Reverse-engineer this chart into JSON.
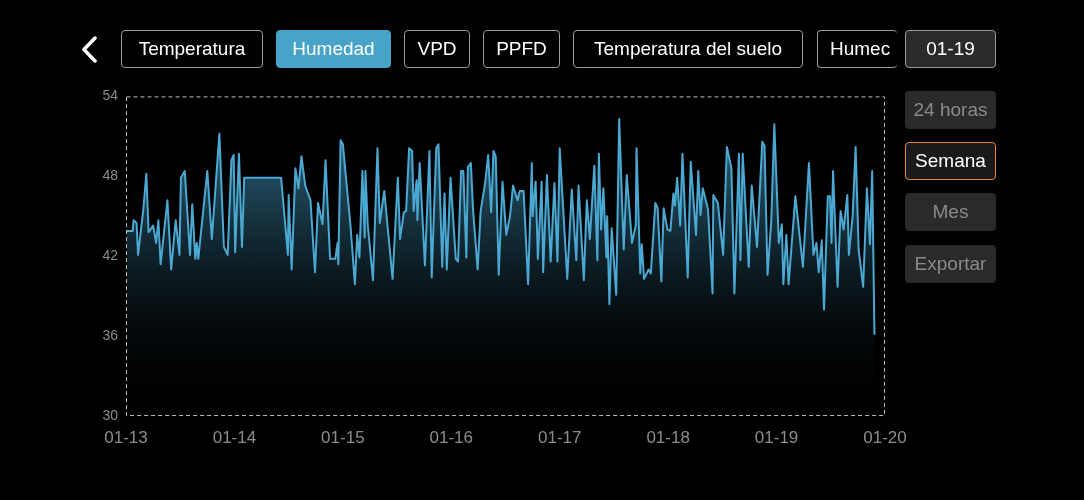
{
  "chart_data": {
    "type": "area",
    "annotations": [
      "Temperatura",
      "Humedad",
      "VPD",
      "PPFD",
      "Temperatura del suelo",
      "Humec",
      "01-19",
      "24 horas",
      "Semana",
      "Mes",
      "Exportar"
    ],
    "xlim": [
      "--01-13",
      "--01-20"
    ],
    "xticks": [
      {
        "value": "--01-13",
        "label": "01-13"
      },
      {
        "value": "--01-14",
        "label": "01-14"
      },
      {
        "value": "--01-15",
        "label": "01-15"
      },
      {
        "value": "--01-16",
        "label": "01-16"
      },
      {
        "value": "--01-17",
        "label": "01-17"
      },
      {
        "value": "--01-18",
        "label": "01-18"
      },
      {
        "value": "--01-19",
        "label": "01-19"
      },
      {
        "value": "--01-20",
        "label": "01-20"
      }
    ],
    "ylim": [
      30,
      54
    ],
    "yticks": [
      30,
      36,
      42,
      48,
      54
    ],
    "series": [
      {
        "color": "#4aa8d2",
        "x": [
          "--01-13T00:10",
          "--01-13T01:30",
          "--01-13T01:40",
          "--01-13T02:20",
          "--01-13T02:40",
          "--01-13T03:50",
          "--01-13T04:30",
          "--01-13T05:00",
          "--01-13T06:00",
          "--01-13T06:40",
          "--01-13T07:10",
          "--01-13T07:40",
          "--01-13T09:10",
          "--01-13T10:00",
          "--01-13T11:00",
          "--01-13T11:50",
          "--01-13T12:10",
          "--01-13T13:00",
          "--01-13T14:10",
          "--01-13T14:40",
          "--01-13T15:20",
          "--01-13T15:40",
          "--01-13T16:00",
          "--01-13T18:00",
          "--01-13T19:00",
          "--01-13T20:40",
          "--01-13T21:40",
          "--01-13T22:30",
          "--01-13T23:20",
          "--01-13T23:50",
          "--01-14T00:10",
          "--01-14T01:00",
          "--01-14T01:40",
          "--01-14T02:10",
          "--01-14T10:20",
          "--01-14T11:50",
          "--01-14T12:00",
          "--01-14T12:40",
          "--01-14T13:30",
          "--01-14T14:10",
          "--01-14T14:50",
          "--01-14T15:40",
          "--01-14T16:50",
          "--01-14T17:50",
          "--01-14T18:30",
          "--01-14T19:30",
          "--01-14T20:10",
          "--01-14T21:10",
          "--01-14T22:20",
          "--01-14T22:50",
          "--01-14T23:00",
          "--01-14T23:30",
          "--01-15T00:00",
          "--01-15T01:40",
          "--01-15T02:40",
          "--01-15T03:10",
          "--01-15T03:40",
          "--01-15T04:20",
          "--01-15T04:50",
          "--01-15T05:00",
          "--01-15T05:30",
          "--01-15T06:40",
          "--01-15T07:40",
          "--01-15T08:10",
          "--01-15T09:10",
          "--01-15T11:00",
          "--01-15T12:10",
          "--01-15T12:40",
          "--01-15T13:30",
          "--01-15T14:00",
          "--01-15T14:40",
          "--01-15T15:20",
          "--01-15T15:40",
          "--01-15T16:20",
          "--01-15T16:30",
          "--01-15T17:00",
          "--01-15T18:10",
          "--01-15T19:10",
          "--01-15T19:40",
          "--01-15T20:40",
          "--01-15T21:10",
          "--01-15T22:00",
          "--01-15T22:30",
          "--01-15T23:00",
          "--01-15T23:50",
          "--01-16T01:00",
          "--01-16T01:30",
          "--01-16T02:10",
          "--01-16T02:40",
          "--01-16T03:20",
          "--01-16T03:40",
          "--01-16T04:20",
          "--01-16T04:50",
          "--01-16T05:50",
          "--01-16T06:30",
          "--01-16T07:30",
          "--01-16T08:10",
          "--01-16T08:50",
          "--01-16T09:20",
          "--01-16T09:50",
          "--01-16T10:30",
          "--01-16T11:20",
          "--01-16T12:10",
          "--01-16T13:00",
          "--01-16T13:40",
          "--01-16T14:40",
          "--01-16T15:10",
          "--01-16T16:00",
          "--01-16T17:00",
          "--01-16T17:50",
          "--01-16T18:00",
          "--01-16T18:40",
          "--01-16T19:10",
          "--01-16T20:00",
          "--01-16T20:20",
          "--01-16T21:10",
          "--01-16T22:00",
          "--01-16T22:50",
          "--01-16T23:30",
          "--01-17T00:00",
          "--01-17T01:40",
          "--01-17T02:40",
          "--01-17T03:40",
          "--01-17T04:10",
          "--01-17T05:20",
          "--01-17T06:00",
          "--01-17T06:40",
          "--01-17T07:40",
          "--01-17T08:20",
          "--01-17T08:40",
          "--01-17T09:10",
          "--01-17T09:40",
          "--01-17T10:20",
          "--01-17T10:30",
          "--01-17T11:00",
          "--01-17T11:30",
          "--01-17T12:30",
          "--01-17T13:10",
          "--01-17T14:10",
          "--01-17T14:50",
          "--01-17T16:00",
          "--01-17T16:50",
          "--01-17T17:00",
          "--01-17T17:50",
          "--01-17T18:10",
          "--01-17T18:40",
          "--01-17T19:40",
          "--01-17T20:10",
          "--01-17T21:10",
          "--01-17T21:40",
          "--01-17T22:30",
          "--01-17T23:00",
          "--01-17T23:50",
          "--01-18T00:30",
          "--01-18T01:10",
          "--01-18T01:30",
          "--01-18T02:00",
          "--01-18T02:40",
          "--01-18T03:10",
          "--01-18T04:20",
          "--01-18T05:00",
          "--01-18T06:10",
          "--01-18T06:40",
          "--01-18T07:10",
          "--01-18T07:40",
          "--01-18T08:50",
          "--01-18T09:50",
          "--01-18T10:00",
          "--01-18T11:00",
          "--01-18T12:10",
          "--01-18T13:00",
          "--01-18T14:00",
          "--01-18T14:40",
          "--01-18T15:40",
          "--01-18T16:00",
          "--01-18T16:30",
          "--01-18T17:50",
          "--01-18T18:30",
          "--01-18T19:40",
          "--01-18T20:50",
          "--01-18T21:20",
          "--01-18T22:00",
          "--01-18T22:50",
          "--01-18T23:30",
          "--01-19T00:30",
          "--01-19T01:10",
          "--01-19T01:30",
          "--01-19T02:10",
          "--01-19T02:40",
          "--01-19T04:10",
          "--01-19T05:50",
          "--01-19T07:10",
          "--01-19T08:10",
          "--01-19T08:50",
          "--01-19T09:20",
          "--01-19T10:00",
          "--01-19T10:30",
          "--01-19T11:20",
          "--01-19T11:50",
          "--01-19T12:10",
          "--01-19T12:30",
          "--01-19T13:30",
          "--01-19T14:10",
          "--01-19T14:50",
          "--01-19T15:40",
          "--01-19T16:00",
          "--01-19T16:50",
          "--01-19T17:30",
          "--01-19T18:10",
          "--01-19T19:10",
          "--01-19T20:00",
          "--01-19T20:40",
          "--01-19T21:10",
          "--01-19T21:40"
        ],
        "values": [
          43.9,
          43.9,
          44.7,
          44.5,
          42.1,
          45.5,
          48.2,
          43.8,
          44.3,
          43.0,
          44.7,
          41.4,
          46.2,
          41.0,
          44.7,
          42.1,
          47.9,
          48.4,
          42.1,
          45.9,
          41.8,
          43.0,
          41.8,
          48.4,
          43.3,
          51.2,
          42.7,
          42.1,
          49.2,
          49.6,
          42.3,
          49.7,
          42.7,
          47.9,
          47.9,
          42.1,
          46.6,
          41.0,
          48.6,
          47.1,
          49.5,
          47.3,
          46.2,
          40.8,
          46.0,
          44.4,
          49.2,
          41.8,
          41.8,
          43.0,
          41.4,
          50.7,
          50.4,
          44.4,
          39.9,
          43.6,
          41.9,
          48.4,
          43.4,
          48.4,
          44.4,
          40.2,
          50.1,
          44.5,
          46.9,
          40.3,
          47.9,
          43.3,
          45.3,
          45.4,
          50.1,
          49.9,
          45.4,
          47.7,
          44.7,
          49.0,
          41.3,
          49.9,
          40.4,
          50.1,
          50.4,
          41.2,
          46.7,
          41.0,
          47.9,
          41.8,
          41.6,
          48.4,
          48.4,
          41.9,
          48.7,
          49.0,
          45.4,
          41.0,
          45.4,
          47.5,
          49.6,
          45.3,
          49.9,
          49.5,
          40.6,
          47.6,
          43.6,
          45.0,
          47.3,
          46.2,
          46.9,
          46.9,
          39.9,
          49.0,
          45.0,
          47.6,
          41.8,
          47.6,
          40.8,
          48.1,
          41.6,
          47.5,
          41.6,
          50.1,
          40.3,
          47.0,
          41.7,
          47.3,
          40.2,
          46.2,
          43.3,
          48.8,
          41.7,
          49.7,
          44.0,
          47.1,
          41.9,
          45.0,
          38.4,
          44.1,
          39.1,
          52.3,
          42.5,
          48.1,
          43.0,
          44.3,
          50.1,
          40.7,
          42.9,
          40.3,
          41.0,
          40.7,
          46.0,
          45.6,
          40.1,
          45.6,
          44.0,
          43.9,
          46.7,
          45.8,
          47.9,
          44.3,
          49.7,
          40.4,
          49.1,
          43.6,
          48.4,
          45.1,
          47.1,
          45.5,
          39.2,
          46.6,
          46.0,
          42.1,
          50.2,
          48.6,
          39.2,
          49.7,
          41.7,
          49.7,
          41.2,
          47.3,
          42.7,
          50.6,
          50.3,
          40.6,
          44.7,
          51.9,
          43.0,
          44.4,
          39.9,
          43.6,
          39.9,
          46.5,
          41.2,
          49.0,
          42.1,
          43.0,
          40.8,
          43.2,
          38.0,
          46.5,
          46.5,
          43.0,
          48.4,
          39.7,
          45.4,
          44.0,
          46.6,
          42.1,
          45.0,
          50.2,
          42.5,
          39.7,
          47.1,
          42.9,
          48.4,
          36.1
        ]
      }
    ]
  }
}
